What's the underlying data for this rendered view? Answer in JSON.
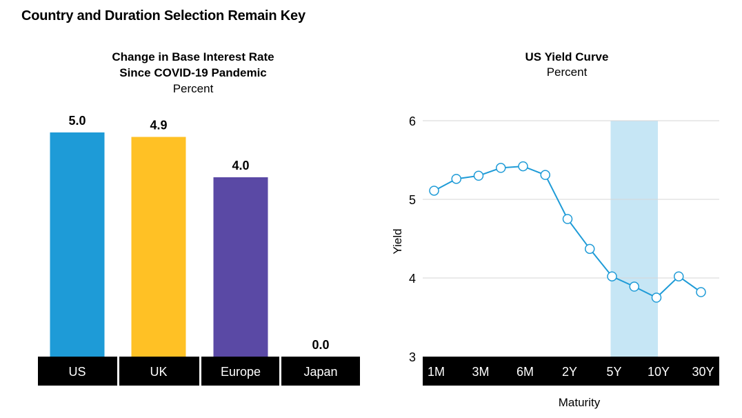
{
  "page_title": "Country and Duration Selection Remain Key",
  "chart_data": [
    {
      "type": "bar",
      "title": "Change in Base Interest Rate\nSince COVID-19 Pandemic",
      "title_lines": [
        "Change in Base Interest Rate",
        "Since COVID-19 Pandemic"
      ],
      "subtitle": "Percent",
      "categories": [
        "US",
        "UK",
        "Europe",
        "Japan"
      ],
      "values": [
        5.0,
        4.9,
        4.0,
        0.0
      ],
      "data_labels": [
        "5.0",
        "4.9",
        "4.0",
        "0.0"
      ],
      "colors": [
        "#1e9bd7",
        "#ffc125",
        "#5a49a5",
        "#5a49a5"
      ],
      "ylim": [
        0,
        5.0
      ],
      "grid": false,
      "legend": "none"
    },
    {
      "type": "line",
      "title": "US Yield Curve",
      "subtitle": "Percent",
      "xlabel": "Maturity",
      "ylabel": "Yield",
      "x_tick_labels": [
        "1M",
        "3M",
        "6M",
        "2Y",
        "5Y",
        "10Y",
        "30Y"
      ],
      "y_ticks": [
        3,
        4,
        5,
        6
      ],
      "ylim": [
        3,
        6
      ],
      "series": [
        {
          "values": [
            5.11,
            5.26,
            5.3,
            5.4,
            5.42,
            5.31,
            4.75,
            4.37,
            4.02,
            3.89,
            3.75,
            4.02,
            3.82
          ]
        }
      ],
      "highlight_range": [
        "5Y",
        "10Y"
      ],
      "line_color": "#1e9bd7",
      "highlight_color": "#c6e6f5",
      "grid": true,
      "legend": "none"
    }
  ]
}
